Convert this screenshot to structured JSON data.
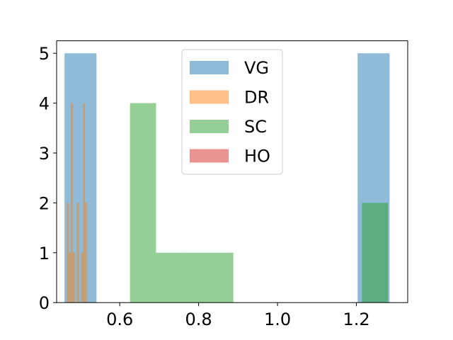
{
  "chart_data": {
    "type": "histogram",
    "title": "",
    "xlabel": "",
    "ylabel": "",
    "xlim": [
      0.44,
      1.33
    ],
    "ylim": [
      0,
      5.25
    ],
    "xticks": [
      0.6,
      0.8,
      1.0,
      1.2
    ],
    "xtick_labels": [
      "0.6",
      "0.8",
      "1.0",
      "1.2"
    ],
    "yticks": [
      0,
      1,
      2,
      3,
      4,
      5
    ],
    "ytick_labels": [
      "0",
      "1",
      "2",
      "3",
      "4",
      "5"
    ],
    "legend": {
      "placement": "upper-center"
    },
    "series": [
      {
        "name": "VG",
        "color": "#1f77b4",
        "opacity": 0.5,
        "bins": [
          {
            "x0": 0.46,
            "x1": 0.541,
            "count": 5
          },
          {
            "x0": 1.203,
            "x1": 1.284,
            "count": 5
          }
        ]
      },
      {
        "name": "DR",
        "color": "#ff7f0e",
        "opacity": 0.5,
        "bins": [
          {
            "x0": 0.466,
            "x1": 0.471,
            "count": 2
          },
          {
            "x0": 0.471,
            "x1": 0.476,
            "count": 1
          },
          {
            "x0": 0.476,
            "x1": 0.481,
            "count": 4
          },
          {
            "x0": 0.481,
            "x1": 0.486,
            "count": 1
          },
          {
            "x0": 0.486,
            "x1": 0.491,
            "count": 0
          },
          {
            "x0": 0.491,
            "x1": 0.497,
            "count": 2
          },
          {
            "x0": 0.497,
            "x1": 0.502,
            "count": 0
          },
          {
            "x0": 0.502,
            "x1": 0.507,
            "count": 1
          },
          {
            "x0": 0.507,
            "x1": 0.512,
            "count": 4
          },
          {
            "x0": 0.512,
            "x1": 0.517,
            "count": 2
          }
        ]
      },
      {
        "name": "SC",
        "color": "#2ca02c",
        "opacity": 0.5,
        "bins": [
          {
            "x0": 0.626,
            "x1": 0.692,
            "count": 4
          },
          {
            "x0": 0.692,
            "x1": 0.757,
            "count": 1
          },
          {
            "x0": 0.757,
            "x1": 0.822,
            "count": 1
          },
          {
            "x0": 0.822,
            "x1": 0.888,
            "count": 1
          },
          {
            "x0": 0.888,
            "x1": 0.953,
            "count": 0
          },
          {
            "x0": 0.953,
            "x1": 1.018,
            "count": 0
          },
          {
            "x0": 1.018,
            "x1": 1.084,
            "count": 0
          },
          {
            "x0": 1.084,
            "x1": 1.149,
            "count": 0
          },
          {
            "x0": 1.149,
            "x1": 1.214,
            "count": 0
          },
          {
            "x0": 1.214,
            "x1": 1.28,
            "count": 2
          }
        ]
      },
      {
        "name": "HO",
        "color": "#d62728",
        "opacity": 0.5,
        "bins": []
      }
    ]
  }
}
